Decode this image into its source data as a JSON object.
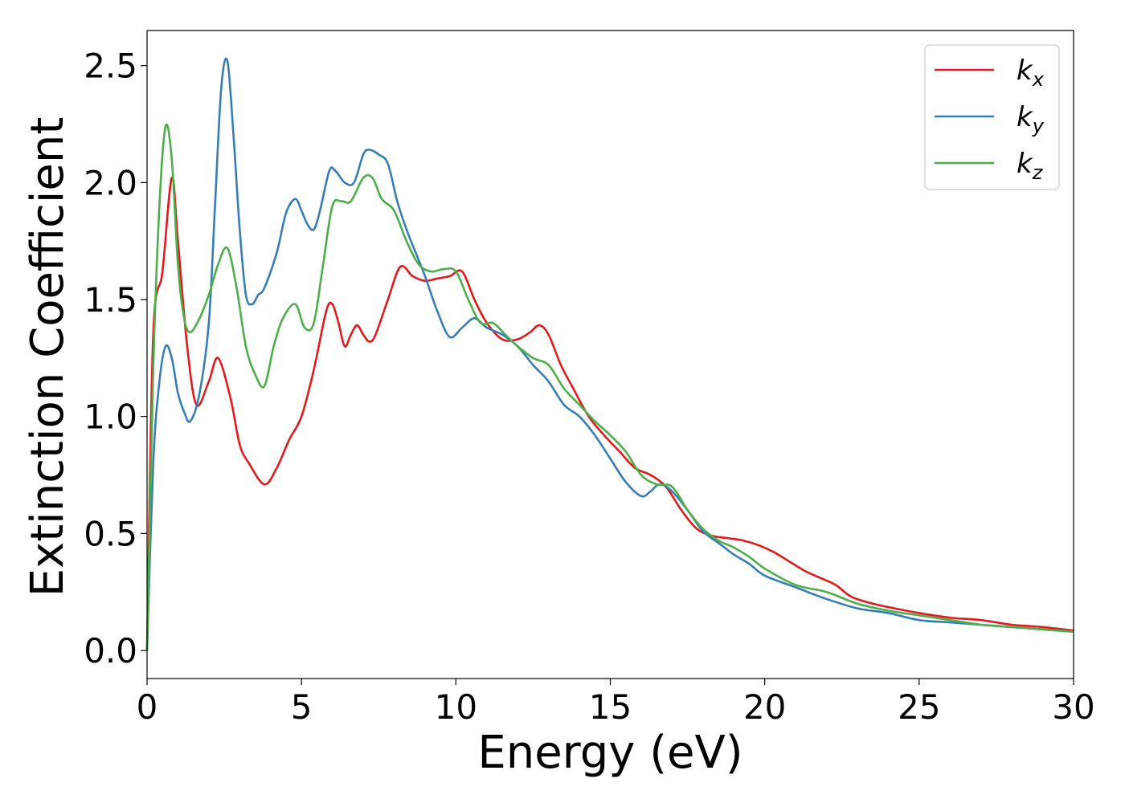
{
  "chart_data": {
    "type": "line",
    "xlabel": "Energy (eV)",
    "ylabel": "Extinction Coefficient",
    "xlim": [
      0,
      30
    ],
    "ylim": [
      -0.12,
      2.65
    ],
    "xticks": [
      0,
      5,
      10,
      15,
      20,
      25,
      30
    ],
    "xtick_labels": [
      "0",
      "5",
      "10",
      "15",
      "20",
      "25",
      "30"
    ],
    "yticks": [
      0.0,
      0.5,
      1.0,
      1.5,
      2.0,
      2.5
    ],
    "ytick_labels": [
      "0.0",
      "0.5",
      "1.0",
      "1.5",
      "2.0",
      "2.5"
    ],
    "grid": false,
    "legend_position": "top-right",
    "series": [
      {
        "name": "k_x",
        "label_main": "k",
        "label_sub": "x",
        "color": "#e41a1c",
        "x": [
          0,
          0.2,
          0.5,
          0.8,
          1.0,
          1.3,
          1.6,
          2.0,
          2.3,
          2.7,
          3.0,
          3.3,
          3.8,
          4.2,
          4.6,
          5.0,
          5.4,
          5.8,
          6.0,
          6.2,
          6.4,
          6.6,
          6.8,
          7.0,
          7.2,
          7.4,
          7.8,
          8.2,
          8.6,
          9.0,
          9.4,
          9.8,
          10.2,
          10.6,
          11.0,
          11.5,
          12.0,
          12.4,
          12.7,
          13.0,
          13.4,
          13.8,
          14.3,
          14.8,
          15.3,
          15.8,
          16.3,
          16.8,
          17.3,
          17.8,
          18.3,
          18.8,
          19.3,
          19.8,
          20.3,
          20.8,
          21.3,
          21.8,
          22.3,
          22.8,
          23.5,
          24.2,
          25.0,
          26.0,
          27.0,
          28.0,
          29.0,
          30.0
        ],
        "y": [
          0.0,
          1.35,
          1.62,
          2.02,
          1.75,
          1.3,
          1.05,
          1.15,
          1.25,
          1.08,
          0.88,
          0.8,
          0.71,
          0.78,
          0.9,
          1.0,
          1.2,
          1.45,
          1.48,
          1.4,
          1.3,
          1.35,
          1.39,
          1.35,
          1.32,
          1.35,
          1.5,
          1.64,
          1.6,
          1.58,
          1.59,
          1.6,
          1.62,
          1.5,
          1.4,
          1.33,
          1.33,
          1.36,
          1.39,
          1.35,
          1.22,
          1.12,
          1.0,
          0.92,
          0.85,
          0.78,
          0.75,
          0.7,
          0.6,
          0.52,
          0.49,
          0.48,
          0.47,
          0.45,
          0.42,
          0.38,
          0.34,
          0.31,
          0.28,
          0.23,
          0.2,
          0.18,
          0.16,
          0.14,
          0.13,
          0.11,
          0.1,
          0.085
        ]
      },
      {
        "name": "k_y",
        "label_main": "k",
        "label_sub": "y",
        "color": "#377eb8",
        "x": [
          0,
          0.2,
          0.4,
          0.6,
          0.8,
          1.0,
          1.2,
          1.4,
          1.7,
          2.0,
          2.2,
          2.4,
          2.6,
          2.8,
          3.0,
          3.2,
          3.4,
          3.6,
          3.8,
          4.2,
          4.5,
          4.8,
          5.0,
          5.2,
          5.4,
          5.6,
          5.9,
          6.1,
          6.4,
          6.7,
          7.0,
          7.2,
          7.5,
          7.8,
          8.1,
          8.4,
          8.7,
          9.0,
          9.4,
          9.8,
          10.2,
          10.6,
          11.0,
          11.5,
          12.0,
          12.5,
          13.0,
          13.5,
          14.0,
          14.5,
          15.0,
          15.5,
          16.0,
          16.3,
          16.6,
          17.0,
          17.5,
          18.0,
          18.5,
          19.0,
          19.5,
          20.0,
          21.0,
          22.0,
          23.0,
          24.0,
          25.0,
          26.0,
          27.0,
          28.0,
          29.0,
          30.0
        ],
        "y": [
          0.0,
          0.8,
          1.15,
          1.3,
          1.25,
          1.1,
          1.02,
          0.98,
          1.1,
          1.4,
          1.9,
          2.4,
          2.52,
          2.2,
          1.8,
          1.52,
          1.48,
          1.52,
          1.55,
          1.7,
          1.87,
          1.93,
          1.88,
          1.82,
          1.8,
          1.88,
          2.05,
          2.05,
          2.0,
          2.0,
          2.12,
          2.14,
          2.12,
          2.08,
          1.92,
          1.8,
          1.7,
          1.6,
          1.45,
          1.34,
          1.38,
          1.42,
          1.38,
          1.35,
          1.3,
          1.22,
          1.15,
          1.05,
          1.0,
          0.92,
          0.82,
          0.72,
          0.66,
          0.68,
          0.71,
          0.68,
          0.6,
          0.51,
          0.46,
          0.41,
          0.37,
          0.32,
          0.27,
          0.22,
          0.18,
          0.16,
          0.13,
          0.12,
          0.11,
          0.1,
          0.09,
          0.08
        ]
      },
      {
        "name": "k_z",
        "label_main": "k",
        "label_sub": "z",
        "color": "#4daf4a",
        "x": [
          0,
          0.2,
          0.4,
          0.6,
          0.8,
          1.0,
          1.2,
          1.4,
          1.7,
          2.0,
          2.3,
          2.6,
          2.9,
          3.2,
          3.5,
          3.8,
          4.1,
          4.4,
          4.8,
          5.1,
          5.4,
          5.7,
          6.0,
          6.3,
          6.6,
          7.0,
          7.3,
          7.6,
          8.0,
          8.4,
          8.8,
          9.2,
          9.6,
          10.0,
          10.4,
          10.8,
          11.2,
          11.6,
          12.0,
          12.5,
          13.0,
          13.5,
          14.0,
          14.5,
          15.0,
          15.5,
          16.0,
          16.5,
          17.0,
          17.5,
          18.0,
          18.5,
          19.0,
          19.5,
          20.0,
          21.0,
          22.0,
          23.0,
          24.0,
          25.0,
          26.0,
          27.0,
          28.0,
          29.0,
          30.0
        ],
        "y": [
          0.0,
          1.2,
          1.9,
          2.24,
          2.1,
          1.65,
          1.42,
          1.36,
          1.42,
          1.52,
          1.65,
          1.72,
          1.55,
          1.3,
          1.18,
          1.13,
          1.3,
          1.42,
          1.48,
          1.38,
          1.4,
          1.65,
          1.9,
          1.92,
          1.92,
          2.02,
          2.02,
          1.93,
          1.88,
          1.75,
          1.65,
          1.62,
          1.63,
          1.62,
          1.5,
          1.4,
          1.4,
          1.35,
          1.3,
          1.25,
          1.22,
          1.12,
          1.05,
          0.98,
          0.92,
          0.85,
          0.75,
          0.71,
          0.7,
          0.6,
          0.52,
          0.47,
          0.44,
          0.4,
          0.35,
          0.28,
          0.25,
          0.2,
          0.17,
          0.15,
          0.13,
          0.11,
          0.1,
          0.09,
          0.08
        ]
      }
    ]
  }
}
